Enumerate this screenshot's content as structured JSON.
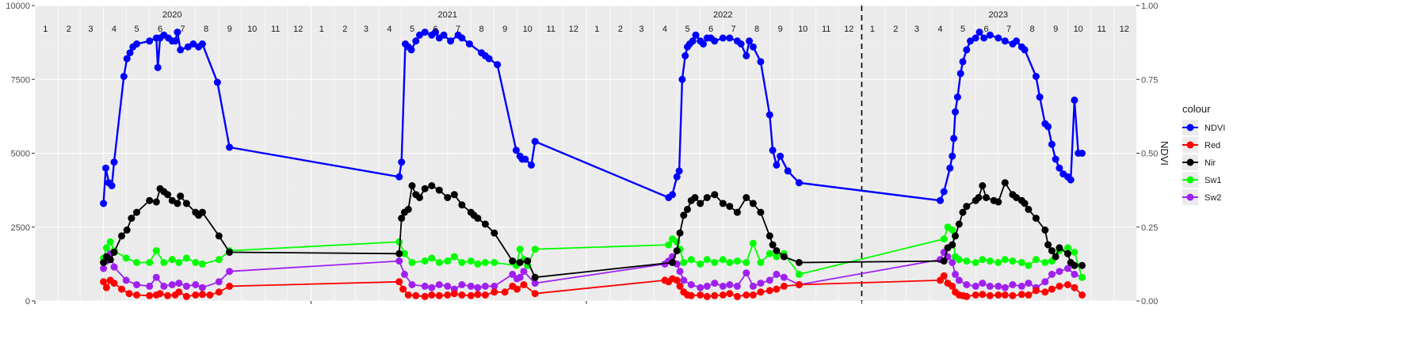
{
  "chart_data": {
    "type": "line",
    "title": "",
    "xlabel": "",
    "ylabel_left": "",
    "ylabel_right": "NDVI",
    "x_domain": [
      "2020-01-01",
      "2023-12-31"
    ],
    "ylim_left": [
      0,
      10000
    ],
    "ylim_right": [
      0,
      1
    ],
    "y_ticks_left": [
      0,
      2500,
      5000,
      7500,
      10000
    ],
    "y_tick_labels_left": [
      "0",
      "2500",
      "5000",
      "7500",
      "10000"
    ],
    "y_ticks_right": [
      0,
      0.25,
      0.5,
      0.75,
      1
    ],
    "y_tick_labels_right": [
      "0.00",
      "0.25",
      "0.50",
      "0.75",
      "1.00"
    ],
    "years": [
      "2020",
      "2021",
      "2022",
      "2023"
    ],
    "month_labels": [
      "1",
      "2",
      "3",
      "4",
      "5",
      "6",
      "7",
      "8",
      "9",
      "10",
      "11",
      "12"
    ],
    "vline_date": "2023-01-01",
    "grid": true,
    "legend_title": "colour",
    "legend_position": "right",
    "series": [
      {
        "name": "NDVI",
        "color": "#0000FF",
        "dates": [
          "2020-04-01",
          "2020-04-04",
          "2020-04-08",
          "2020-04-12",
          "2020-04-15",
          "2020-04-28",
          "2020-05-02",
          "2020-05-06",
          "2020-05-10",
          "2020-05-15",
          "2020-06-01",
          "2020-06-10",
          "2020-06-12",
          "2020-06-15",
          "2020-06-20",
          "2020-06-26",
          "2020-07-01",
          "2020-07-05",
          "2020-07-08",
          "2020-07-12",
          "2020-07-22",
          "2020-07-29",
          "2020-08-05",
          "2020-08-10",
          "2020-08-30",
          "2020-09-15",
          "2021-04-28",
          "2021-05-01",
          "2021-05-06",
          "2021-05-10",
          "2021-05-14",
          "2021-05-20",
          "2021-05-25",
          "2021-06-01",
          "2021-06-10",
          "2021-06-15",
          "2021-06-20",
          "2021-06-26",
          "2021-07-05",
          "2021-07-15",
          "2021-07-20",
          "2021-07-30",
          "2021-08-15",
          "2021-08-20",
          "2021-08-25",
          "2021-09-05",
          "2021-09-30",
          "2021-10-05",
          "2021-10-08",
          "2021-10-12",
          "2021-10-20",
          "2021-10-25",
          "2022-04-20",
          "2022-04-25",
          "2022-05-01",
          "2022-05-04",
          "2022-05-08",
          "2022-05-12",
          "2022-05-15",
          "2022-05-18",
          "2022-05-22",
          "2022-05-26",
          "2022-06-01",
          "2022-06-05",
          "2022-06-10",
          "2022-06-15",
          "2022-06-20",
          "2022-07-01",
          "2022-07-10",
          "2022-07-20",
          "2022-07-25",
          "2022-08-01",
          "2022-08-05",
          "2022-08-10",
          "2022-08-20",
          "2022-09-01",
          "2022-09-05",
          "2022-09-10",
          "2022-09-15",
          "2022-09-25",
          "2022-10-10",
          "2023-04-15",
          "2023-04-20",
          "2023-04-28",
          "2023-05-01",
          "2023-05-03",
          "2023-05-05",
          "2023-05-08",
          "2023-05-12",
          "2023-05-15",
          "2023-05-20",
          "2023-05-25",
          "2023-06-01",
          "2023-06-06",
          "2023-06-12",
          "2023-06-20",
          "2023-07-01",
          "2023-07-10",
          "2023-07-20",
          "2023-07-25",
          "2023-08-01",
          "2023-08-05",
          "2023-08-20",
          "2023-08-25",
          "2023-09-01",
          "2023-09-05",
          "2023-09-10",
          "2023-09-15",
          "2023-09-20",
          "2023-09-25",
          "2023-10-01",
          "2023-10-05",
          "2023-10-10",
          "2023-10-15",
          "2023-10-20"
        ],
        "values": [
          0.33,
          0.45,
          0.4,
          0.39,
          0.47,
          0.76,
          0.82,
          0.84,
          0.86,
          0.87,
          0.88,
          0.89,
          0.79,
          0.89,
          0.9,
          0.89,
          0.88,
          0.88,
          0.91,
          0.85,
          0.86,
          0.87,
          0.86,
          0.87,
          0.74,
          0.52,
          0.42,
          0.47,
          0.87,
          0.86,
          0.85,
          0.88,
          0.9,
          0.91,
          0.9,
          0.91,
          0.89,
          0.9,
          0.88,
          0.9,
          0.89,
          0.87,
          0.84,
          0.83,
          0.82,
          0.8,
          0.51,
          0.49,
          0.48,
          0.48,
          0.46,
          0.54,
          0.35,
          0.36,
          0.42,
          0.44,
          0.75,
          0.83,
          0.86,
          0.87,
          0.88,
          0.9,
          0.88,
          0.87,
          0.89,
          0.89,
          0.88,
          0.89,
          0.89,
          0.88,
          0.87,
          0.83,
          0.88,
          0.86,
          0.81,
          0.63,
          0.51,
          0.46,
          0.49,
          0.44,
          0.4,
          0.34,
          0.37,
          0.45,
          0.49,
          0.55,
          0.64,
          0.69,
          0.77,
          0.81,
          0.85,
          0.88,
          0.89,
          0.91,
          0.89,
          0.9,
          0.89,
          0.88,
          0.87,
          0.88,
          0.86,
          0.85,
          0.76,
          0.69,
          0.6,
          0.59,
          0.53,
          0.48,
          0.45,
          0.43,
          0.42,
          0.41,
          0.68,
          0.5,
          0.5
        ]
      },
      {
        "name": "Red",
        "color": "#FF0000",
        "dates": [
          "2020-04-01",
          "2020-04-05",
          "2020-04-10",
          "2020-04-15",
          "2020-04-25",
          "2020-05-05",
          "2020-05-15",
          "2020-06-01",
          "2020-06-10",
          "2020-06-15",
          "2020-06-25",
          "2020-07-05",
          "2020-07-10",
          "2020-07-20",
          "2020-08-01",
          "2020-08-10",
          "2020-08-20",
          "2020-09-01",
          "2020-09-15",
          "2021-04-28",
          "2021-05-03",
          "2021-05-10",
          "2021-05-20",
          "2021-06-01",
          "2021-06-10",
          "2021-06-20",
          "2021-07-01",
          "2021-07-10",
          "2021-07-20",
          "2021-08-01",
          "2021-08-10",
          "2021-08-20",
          "2021-09-01",
          "2021-09-15",
          "2021-09-25",
          "2021-10-01",
          "2021-10-10",
          "2021-10-25",
          "2022-04-15",
          "2022-04-20",
          "2022-04-25",
          "2022-05-01",
          "2022-05-05",
          "2022-05-10",
          "2022-05-15",
          "2022-05-20",
          "2022-06-01",
          "2022-06-10",
          "2022-06-20",
          "2022-07-01",
          "2022-07-10",
          "2022-07-20",
          "2022-08-01",
          "2022-08-10",
          "2022-08-20",
          "2022-09-01",
          "2022-09-10",
          "2022-09-20",
          "2022-10-10",
          "2023-04-15",
          "2023-04-20",
          "2023-04-25",
          "2023-05-01",
          "2023-05-05",
          "2023-05-10",
          "2023-05-15",
          "2023-05-20",
          "2023-06-01",
          "2023-06-10",
          "2023-06-20",
          "2023-07-01",
          "2023-07-10",
          "2023-07-20",
          "2023-08-01",
          "2023-08-10",
          "2023-08-20",
          "2023-09-01",
          "2023-09-10",
          "2023-09-20",
          "2023-10-01",
          "2023-10-10",
          "2023-10-20"
        ],
        "values": [
          650,
          450,
          700,
          600,
          400,
          250,
          200,
          180,
          200,
          250,
          180,
          200,
          300,
          150,
          200,
          220,
          200,
          300,
          500,
          650,
          400,
          200,
          180,
          150,
          200,
          180,
          200,
          250,
          200,
          180,
          220,
          200,
          300,
          300,
          500,
          400,
          550,
          250,
          700,
          650,
          750,
          700,
          500,
          300,
          200,
          180,
          200,
          150,
          180,
          200,
          250,
          150,
          200,
          200,
          300,
          350,
          400,
          500,
          550,
          700,
          850,
          600,
          500,
          300,
          200,
          180,
          150,
          200,
          220,
          180,
          200,
          200,
          180,
          220,
          200,
          350,
          300,
          400,
          500,
          550,
          450,
          200
        ]
      },
      {
        "name": "Nir",
        "color": "#000000",
        "dates": [
          "2020-04-01",
          "2020-04-05",
          "2020-04-10",
          "2020-04-15",
          "2020-04-25",
          "2020-05-02",
          "2020-05-08",
          "2020-05-15",
          "2020-06-01",
          "2020-06-10",
          "2020-06-15",
          "2020-06-20",
          "2020-06-25",
          "2020-07-01",
          "2020-07-08",
          "2020-07-12",
          "2020-07-20",
          "2020-08-01",
          "2020-08-05",
          "2020-08-10",
          "2020-09-01",
          "2020-09-15",
          "2021-04-28",
          "2021-05-01",
          "2021-05-05",
          "2021-05-10",
          "2021-05-15",
          "2021-05-20",
          "2021-05-25",
          "2021-06-01",
          "2021-06-10",
          "2021-06-20",
          "2021-07-01",
          "2021-07-10",
          "2021-07-20",
          "2021-08-01",
          "2021-08-05",
          "2021-08-10",
          "2021-08-20",
          "2021-09-01",
          "2021-09-25",
          "2021-10-05",
          "2021-10-15",
          "2021-10-25",
          "2022-04-25",
          "2022-05-01",
          "2022-05-05",
          "2022-05-10",
          "2022-05-15",
          "2022-05-20",
          "2022-05-25",
          "2022-06-01",
          "2022-06-10",
          "2022-06-20",
          "2022-07-01",
          "2022-07-10",
          "2022-07-20",
          "2022-08-01",
          "2022-08-10",
          "2022-08-20",
          "2022-09-01",
          "2022-09-05",
          "2022-09-10",
          "2022-09-20",
          "2022-10-10",
          "2023-04-20",
          "2023-04-25",
          "2023-05-01",
          "2023-05-05",
          "2023-05-10",
          "2023-05-15",
          "2023-05-20",
          "2023-06-01",
          "2023-06-05",
          "2023-06-10",
          "2023-06-15",
          "2023-06-25",
          "2023-07-01",
          "2023-07-10",
          "2023-07-20",
          "2023-07-25",
          "2023-08-01",
          "2023-08-05",
          "2023-08-10",
          "2023-08-20",
          "2023-09-01",
          "2023-09-05",
          "2023-09-10",
          "2023-09-15",
          "2023-09-20",
          "2023-10-01",
          "2023-10-05",
          "2023-10-10",
          "2023-10-20"
        ],
        "values": [
          1300,
          1500,
          1400,
          1650,
          2200,
          2400,
          2800,
          3000,
          3400,
          3350,
          3800,
          3700,
          3600,
          3400,
          3300,
          3550,
          3300,
          3000,
          2900,
          3000,
          2200,
          1650,
          1600,
          2800,
          3000,
          3100,
          3900,
          3600,
          3500,
          3800,
          3900,
          3750,
          3500,
          3600,
          3250,
          3000,
          2900,
          2800,
          2600,
          2300,
          1350,
          1300,
          1350,
          800,
          1300,
          1700,
          2300,
          2900,
          3100,
          3400,
          3500,
          3300,
          3500,
          3600,
          3300,
          3200,
          3000,
          3500,
          3300,
          3000,
          2200,
          1900,
          1700,
          1500,
          1300,
          1350,
          1800,
          1900,
          2200,
          2600,
          3000,
          3200,
          3400,
          3500,
          3900,
          3500,
          3400,
          3350,
          4000,
          3600,
          3500,
          3400,
          3300,
          3100,
          2800,
          2400,
          1900,
          1700,
          1500,
          1800,
          1600,
          1300,
          1200,
          1200
        ]
      },
      {
        "name": "Sw1",
        "color": "#00FF00",
        "dates": [
          "2020-04-01",
          "2020-04-05",
          "2020-04-10",
          "2020-04-15",
          "2020-05-01",
          "2020-05-15",
          "2020-06-01",
          "2020-06-10",
          "2020-06-20",
          "2020-07-01",
          "2020-07-10",
          "2020-07-20",
          "2020-08-01",
          "2020-08-10",
          "2020-09-01",
          "2020-09-15",
          "2021-04-28",
          "2021-05-05",
          "2021-05-15",
          "2021-06-01",
          "2021-06-10",
          "2021-06-20",
          "2021-07-01",
          "2021-07-10",
          "2021-07-20",
          "2021-08-01",
          "2021-08-10",
          "2021-08-20",
          "2021-09-01",
          "2021-09-30",
          "2021-10-05",
          "2021-10-10",
          "2021-10-15",
          "2021-10-25",
          "2022-04-20",
          "2022-04-25",
          "2022-05-01",
          "2022-05-05",
          "2022-05-10",
          "2022-05-20",
          "2022-06-01",
          "2022-06-10",
          "2022-06-20",
          "2022-07-01",
          "2022-07-10",
          "2022-07-20",
          "2022-08-01",
          "2022-08-10",
          "2022-08-20",
          "2022-09-01",
          "2022-09-10",
          "2022-09-20",
          "2022-10-10",
          "2023-04-20",
          "2023-04-25",
          "2023-05-01",
          "2023-05-05",
          "2023-05-10",
          "2023-05-20",
          "2023-06-01",
          "2023-06-10",
          "2023-06-20",
          "2023-07-01",
          "2023-07-10",
          "2023-07-20",
          "2023-08-01",
          "2023-08-10",
          "2023-08-20",
          "2023-09-01",
          "2023-09-10",
          "2023-09-20",
          "2023-10-01",
          "2023-10-10",
          "2023-10-20"
        ],
        "values": [
          1450,
          1800,
          2000,
          1700,
          1450,
          1300,
          1300,
          1700,
          1300,
          1400,
          1300,
          1450,
          1300,
          1250,
          1400,
          1700,
          2000,
          1600,
          1300,
          1350,
          1450,
          1300,
          1350,
          1500,
          1300,
          1350,
          1250,
          1300,
          1300,
          1200,
          1750,
          1400,
          1200,
          1750,
          1900,
          2100,
          2000,
          1750,
          1300,
          1400,
          1250,
          1400,
          1300,
          1400,
          1300,
          1350,
          1300,
          1950,
          1300,
          1600,
          1500,
          1600,
          900,
          2100,
          2500,
          2400,
          1500,
          1400,
          1350,
          1300,
          1400,
          1350,
          1300,
          1400,
          1350,
          1300,
          1200,
          1400,
          1300,
          1350,
          1700,
          1800,
          1650,
          800
        ]
      },
      {
        "name": "Sw2",
        "color": "#A020F0",
        "dates": [
          "2020-04-01",
          "2020-04-05",
          "2020-04-10",
          "2020-04-15",
          "2020-05-01",
          "2020-05-15",
          "2020-06-01",
          "2020-06-10",
          "2020-06-20",
          "2020-07-01",
          "2020-07-10",
          "2020-07-20",
          "2020-08-01",
          "2020-08-10",
          "2020-09-01",
          "2020-09-15",
          "2021-04-28",
          "2021-05-05",
          "2021-05-15",
          "2021-06-01",
          "2021-06-10",
          "2021-06-20",
          "2021-07-01",
          "2021-07-10",
          "2021-07-20",
          "2021-08-01",
          "2021-08-10",
          "2021-08-20",
          "2021-09-01",
          "2021-09-25",
          "2021-10-01",
          "2021-10-05",
          "2021-10-10",
          "2021-10-25",
          "2022-04-15",
          "2022-04-20",
          "2022-04-25",
          "2022-05-01",
          "2022-05-05",
          "2022-05-10",
          "2022-05-20",
          "2022-06-01",
          "2022-06-10",
          "2022-06-20",
          "2022-07-01",
          "2022-07-10",
          "2022-07-20",
          "2022-08-01",
          "2022-08-10",
          "2022-08-20",
          "2022-09-01",
          "2022-09-10",
          "2022-09-20",
          "2022-10-10",
          "2023-04-15",
          "2023-04-20",
          "2023-04-25",
          "2023-05-01",
          "2023-05-05",
          "2023-05-10",
          "2023-05-20",
          "2023-06-01",
          "2023-06-10",
          "2023-06-20",
          "2023-07-01",
          "2023-07-10",
          "2023-07-20",
          "2023-08-01",
          "2023-08-10",
          "2023-08-20",
          "2023-09-01",
          "2023-09-10",
          "2023-09-20",
          "2023-10-01",
          "2023-10-10",
          "2023-10-20"
        ],
        "values": [
          1100,
          1350,
          1600,
          1150,
          700,
          550,
          500,
          800,
          500,
          550,
          600,
          500,
          550,
          450,
          650,
          1000,
          1350,
          900,
          550,
          500,
          450,
          550,
          500,
          400,
          550,
          500,
          450,
          500,
          500,
          900,
          750,
          800,
          1000,
          600,
          1250,
          1350,
          1500,
          1250,
          1000,
          700,
          550,
          450,
          500,
          600,
          500,
          550,
          500,
          950,
          500,
          600,
          700,
          900,
          800,
          550,
          1400,
          1650,
          1500,
          1300,
          900,
          700,
          550,
          500,
          600,
          500,
          500,
          450,
          550,
          500,
          600,
          450,
          650,
          900,
          1000,
          1100,
          900,
          800
        ]
      }
    ]
  }
}
